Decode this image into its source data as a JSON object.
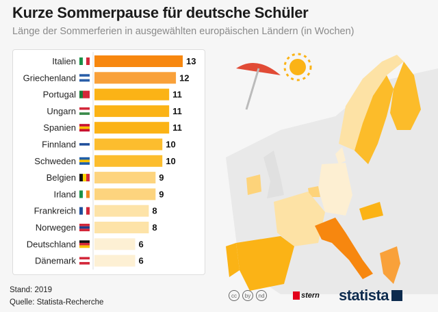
{
  "title": "Kurze Sommerpause für deutsche Schüler",
  "subtitle": "Länge der Sommerferien in ausgewählten europäischen Ländern (in Wochen)",
  "chart_data": {
    "type": "bar",
    "orientation": "horizontal",
    "categories": [
      "Italien",
      "Griechenland",
      "Portugal",
      "Ungarn",
      "Spanien",
      "Finnland",
      "Schweden",
      "Belgien",
      "Irland",
      "Frankreich",
      "Norwegen",
      "Deutschland",
      "Dänemark"
    ],
    "values": [
      13,
      12,
      11,
      11,
      11,
      10,
      10,
      9,
      9,
      8,
      8,
      6,
      6
    ],
    "colors": [
      "#f7870f",
      "#f9a13a",
      "#fbb316",
      "#fbb316",
      "#fbb316",
      "#fcbd2e",
      "#fcbd2e",
      "#fdd47e",
      "#fdd47e",
      "#fde3a8",
      "#fde3a8",
      "#fdf0d4",
      "#fdf0d4"
    ],
    "flags": [
      [
        "#1a9148",
        "#ffffff",
        "#d3283a"
      ],
      [
        "#2a5ea8",
        "#ffffff",
        "#2a5ea8"
      ],
      [
        "#1a7b3a",
        "#d3283a",
        "#d3283a"
      ],
      [
        "#d3283a",
        "#ffffff",
        "#3a8a4a"
      ],
      [
        "#c8102e",
        "#f9c300",
        "#c8102e"
      ],
      [
        "#ffffff",
        "#1f4e9a",
        "#ffffff"
      ],
      [
        "#1f5fa8",
        "#f9c300",
        "#1f5fa8"
      ],
      [
        "#111111",
        "#f9d300",
        "#d3283a"
      ],
      [
        "#1a9148",
        "#ffffff",
        "#f08a24"
      ],
      [
        "#1f4e9a",
        "#ffffff",
        "#d3283a"
      ],
      [
        "#d3283a",
        "#1f3e8a",
        "#d3283a"
      ],
      [
        "#111111",
        "#d3283a",
        "#f9c300"
      ],
      [
        "#d3283a",
        "#ffffff",
        "#d3283a"
      ]
    ],
    "flag_orientation": [
      "v",
      "h",
      "v",
      "h",
      "h",
      "h",
      "h",
      "v",
      "v",
      "v",
      "h",
      "h",
      "h"
    ],
    "xlim": [
      0,
      13
    ],
    "data_labels": true,
    "grid": false
  },
  "footer": {
    "stand": "Stand: 2019",
    "quelle": "Quelle: Statista-Recherche"
  },
  "logos": {
    "stern": "stern",
    "statista": "statista"
  },
  "cc_icons": [
    "cc",
    "by",
    "nd"
  ]
}
